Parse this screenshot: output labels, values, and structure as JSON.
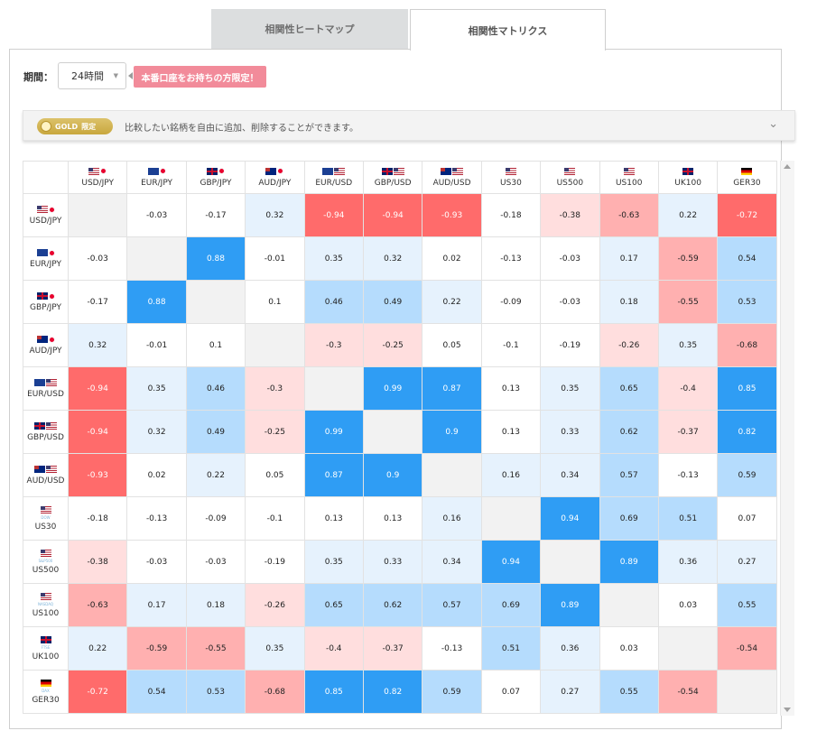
{
  "tabs": [
    {
      "label": "相関性ヒートマップ"
    },
    {
      "label": "相関性マトリクス"
    }
  ],
  "period": {
    "label": "期間：",
    "value": "24時間"
  },
  "promo_badge": "本番口座をお持ちの方限定！",
  "gold_bar": {
    "badge": "GOLD",
    "badge_sub": "限定",
    "text": "比較したい銘柄を自由に追加、削除することができます。"
  },
  "colors": {
    "strong_negative": "#ff6b6b",
    "negative_mid": "#ffb0b0",
    "negative_light": "#ffdede",
    "neutral": "#ffffff",
    "positive_light": "#e6f2fd",
    "positive_mid": "#b5dcfd",
    "strong_positive": "#2f9df4",
    "diagonal": "#f2f2f2"
  },
  "symbols": [
    {
      "name": "USD/JPY",
      "flags": [
        "us",
        "jp"
      ],
      "tag": ""
    },
    {
      "name": "EUR/JPY",
      "flags": [
        "eu",
        "jp"
      ],
      "tag": ""
    },
    {
      "name": "GBP/JPY",
      "flags": [
        "uk",
        "jp"
      ],
      "tag": ""
    },
    {
      "name": "AUD/JPY",
      "flags": [
        "au",
        "jp"
      ],
      "tag": ""
    },
    {
      "name": "EUR/USD",
      "flags": [
        "eu",
        "us"
      ],
      "tag": ""
    },
    {
      "name": "GBP/USD",
      "flags": [
        "uk",
        "us"
      ],
      "tag": ""
    },
    {
      "name": "AUD/USD",
      "flags": [
        "au",
        "us"
      ],
      "tag": ""
    },
    {
      "name": "US30",
      "flags": [
        "us"
      ],
      "tag": "DOW"
    },
    {
      "name": "US500",
      "flags": [
        "us"
      ],
      "tag": "S&P500"
    },
    {
      "name": "US100",
      "flags": [
        "us"
      ],
      "tag": "NASDAQ"
    },
    {
      "name": "UK100",
      "flags": [
        "uk"
      ],
      "tag": "FTSE"
    },
    {
      "name": "GER30",
      "flags": [
        "de"
      ],
      "tag": "DAX"
    }
  ],
  "chart_data": {
    "type": "heatmap",
    "x": [
      "USD/JPY",
      "EUR/JPY",
      "GBP/JPY",
      "AUD/JPY",
      "EUR/USD",
      "GBP/USD",
      "AUD/USD",
      "US30",
      "US500",
      "US100",
      "UK100",
      "GER30"
    ],
    "y": [
      "USD/JPY",
      "EUR/JPY",
      "GBP/JPY",
      "AUD/JPY",
      "EUR/USD",
      "GBP/USD",
      "AUD/USD",
      "US30",
      "US500",
      "US100",
      "UK100",
      "GER30"
    ],
    "values": [
      [
        null,
        -0.03,
        -0.17,
        0.32,
        -0.94,
        -0.94,
        -0.93,
        -0.18,
        -0.38,
        -0.63,
        0.22,
        -0.72
      ],
      [
        -0.03,
        null,
        0.88,
        -0.01,
        0.35,
        0.32,
        0.02,
        -0.13,
        -0.03,
        0.17,
        -0.59,
        0.54
      ],
      [
        -0.17,
        0.88,
        null,
        0.1,
        0.46,
        0.49,
        0.22,
        -0.09,
        -0.03,
        0.18,
        -0.55,
        0.53
      ],
      [
        0.32,
        -0.01,
        0.1,
        null,
        -0.3,
        -0.25,
        0.05,
        -0.1,
        -0.19,
        -0.26,
        0.35,
        -0.68
      ],
      [
        -0.94,
        0.35,
        0.46,
        -0.3,
        null,
        0.99,
        0.87,
        0.13,
        0.35,
        0.65,
        -0.4,
        0.85
      ],
      [
        -0.94,
        0.32,
        0.49,
        -0.25,
        0.99,
        null,
        0.9,
        0.13,
        0.33,
        0.62,
        -0.37,
        0.82
      ],
      [
        -0.93,
        0.02,
        0.22,
        0.05,
        0.87,
        0.9,
        null,
        0.16,
        0.34,
        0.57,
        -0.13,
        0.59
      ],
      [
        -0.18,
        -0.13,
        -0.09,
        -0.1,
        0.13,
        0.13,
        0.16,
        null,
        0.94,
        0.69,
        0.51,
        0.07
      ],
      [
        -0.38,
        -0.03,
        -0.03,
        -0.19,
        0.35,
        0.33,
        0.34,
        0.94,
        null,
        0.89,
        0.36,
        0.27
      ],
      [
        -0.63,
        0.17,
        0.18,
        -0.26,
        0.65,
        0.62,
        0.57,
        0.69,
        0.89,
        null,
        0.03,
        0.55
      ],
      [
        0.22,
        -0.59,
        -0.55,
        0.35,
        -0.4,
        -0.37,
        -0.13,
        0.51,
        0.36,
        0.03,
        null,
        -0.54
      ],
      [
        -0.72,
        0.54,
        0.53,
        -0.68,
        0.85,
        0.82,
        0.59,
        0.07,
        0.27,
        0.55,
        -0.54,
        null
      ]
    ]
  }
}
